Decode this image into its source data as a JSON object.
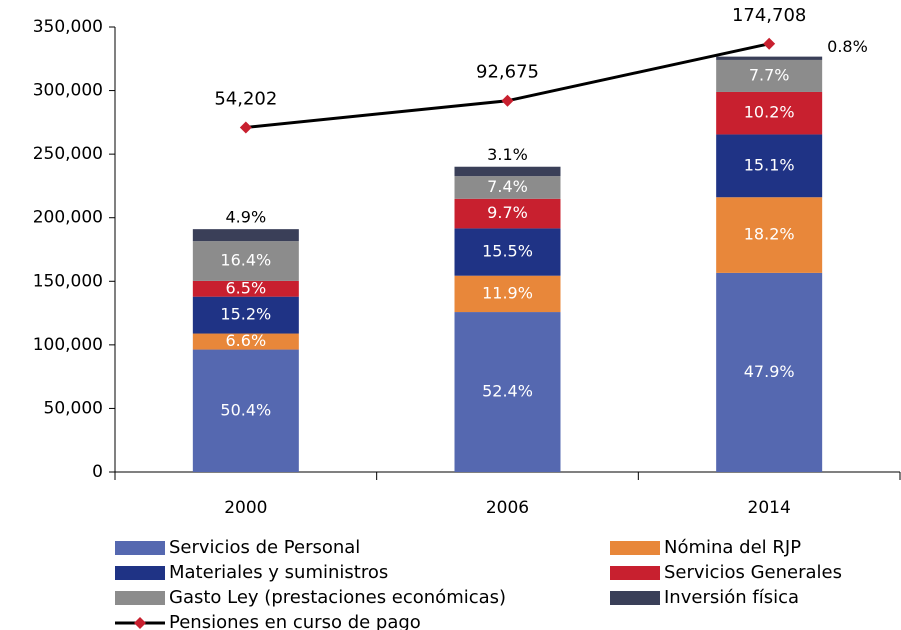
{
  "chart_data": {
    "type": "stacked_bar_line",
    "categories": [
      "2000",
      "2006",
      "2014"
    ],
    "ylim": [
      0,
      350000
    ],
    "yticks": [
      0,
      {
        "value": 50000,
        "label": "50,000"
      },
      {
        "value": 100000,
        "label": "100,000"
      },
      {
        "value": 150000,
        "label": "150,000"
      },
      {
        "value": 200000,
        "label": "200,000"
      },
      {
        "value": 250000,
        "label": "250,000"
      },
      {
        "value": 300000,
        "label": "300,000"
      },
      {
        "value": 350000,
        "label": "350,000"
      }
    ],
    "y2lim": [
      -442200,
      198900
    ],
    "series": [
      {
        "name": "Servicios de Personal",
        "color": "#5568b0",
        "values": [
          96300,
          125800,
          156600
        ],
        "value_labels": [
          "50.4%",
          "52.4%",
          "47.9%"
        ]
      },
      {
        "name": "Nómina del RJP",
        "color": "#e8873a",
        "values": [
          12600,
          28600,
          59500
        ],
        "value_labels": [
          "6.6%",
          "11.9%",
          "18.2%"
        ]
      },
      {
        "name": "Materiales y suministros",
        "color": "#1f3385",
        "values": [
          29000,
          37200,
          49400
        ],
        "value_labels": [
          "15.2%",
          "15.5%",
          "15.1%"
        ]
      },
      {
        "name": "Servicios Generales",
        "color": "#c8202f",
        "values": [
          12400,
          23300,
          33400
        ],
        "value_labels": [
          "6.5%",
          "9.7%",
          "10.2%"
        ]
      },
      {
        "name": "Gasto Ley (prestaciones económicas)",
        "color": "#8c8c8c",
        "values": [
          31300,
          17800,
          25200
        ],
        "value_labels": [
          "16.4%",
          "7.4%",
          "7.7%"
        ]
      },
      {
        "name": "Inversión física",
        "color": "#3a3f58",
        "values": [
          9400,
          7400,
          2600
        ],
        "value_labels": [
          "4.9%",
          "3.1%",
          "0.8%"
        ]
      },
      {
        "name": "Pensiones en curso de pago",
        "type": "line",
        "axis": "y2",
        "color": "#000000",
        "marker_color": "#c8202f",
        "values": [
          54202,
          92675,
          174708
        ],
        "value_labels": [
          "54,202",
          "92,675",
          "174,708"
        ]
      }
    ]
  }
}
